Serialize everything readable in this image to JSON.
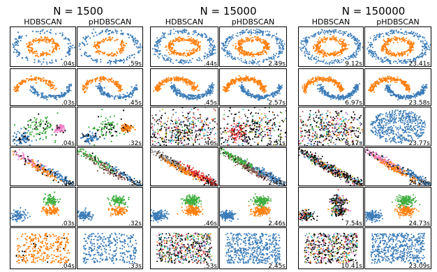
{
  "chart_data": {
    "type": "scatter",
    "colors": {
      "blue": "#3b7cb8",
      "orange": "#ff7f0e",
      "green": "#3fae3f",
      "red": "#e02020",
      "purple": "#9467bd",
      "brown": "#8c564b",
      "pink": "#ee82c8",
      "gray": "#999999",
      "olive": "#bcbd22",
      "cyan": "#17becf",
      "noise": "#000000"
    },
    "groups": [
      {
        "title": "N = 1500",
        "columns": [
          "HDBSCAN",
          "pHDBSCAN"
        ],
        "times": [
          [
            ".04s",
            ".59s"
          ],
          [
            ".03s",
            ".45s"
          ],
          [
            ".04s",
            ".32s"
          ],
          [
            ".04s",
            ".32s"
          ],
          [
            ".03s",
            ".32s"
          ],
          [
            ".04s",
            ".33s"
          ]
        ]
      },
      {
        "title": "N = 15000",
        "columns": [
          "HDBSCAN",
          "pHDBSCAN"
        ],
        "times": [
          [
            ".44s",
            "2.49s"
          ],
          [
            ".45s",
            "2.57s"
          ],
          [
            ".46s",
            "2.31s"
          ],
          [
            ".46s",
            "2.44s"
          ],
          [
            ".46s",
            "2.46s"
          ],
          [
            ".53s",
            "2.45s"
          ]
        ]
      },
      {
        "title": "N = 150000",
        "columns": [
          "HDBSCAN",
          "pHDBSCAN"
        ],
        "times": [
          [
            "9.12s",
            "23.41s"
          ],
          [
            "6.97s",
            "23.58s"
          ],
          [
            "8.17s",
            "23.77s"
          ],
          [
            "8.",
            "24.29s"
          ],
          [
            "7.54s",
            "24.73s"
          ],
          [
            "10.41s",
            "23.09s"
          ]
        ]
      }
    ],
    "rows": [
      "circles",
      "moons",
      "varied",
      "aniso",
      "blobs",
      "no_structure"
    ],
    "panels": {
      "0.0": {
        "0": "two_colors_blue_outer",
        "1": "two_colors_blue_outer"
      },
      "0.1": {
        "0": "two_colors",
        "1": "two_colors"
      },
      "0.2": {
        "0": "blue_green_orange_pink_noise",
        "1": "blue_green_orange_noise"
      },
      "0.3": {
        "0": "pink_blue_orange_noise",
        "1": "green_brown_blue_orange_noise"
      },
      "0.4": {
        "0": "three_blobs",
        "1": "three_blobs"
      },
      "0.5": {
        "0": "orange_with_noise",
        "1": "blue_uniform"
      },
      "1.2": {
        "0": "many_colors_noise",
        "1": "red_green_many_noise"
      },
      "1.3": {
        "0": "gray_orange_red_noise",
        "1": "brown_orange_noise"
      },
      "1.5": {
        "0": "many_colors",
        "1": "blue_uniform"
      },
      "2.2": {
        "0": "many_colors_noise",
        "1": "blue_uniform"
      },
      "2.3": {
        "0": "many_colors_noise",
        "1": "pink_orange_gray_noise"
      },
      "2.4": {
        "0": "three_blobs_mixed",
        "1": "three_blobs"
      },
      "2.5": {
        "0": "many_colors",
        "1": "blue_uniform"
      }
    }
  }
}
